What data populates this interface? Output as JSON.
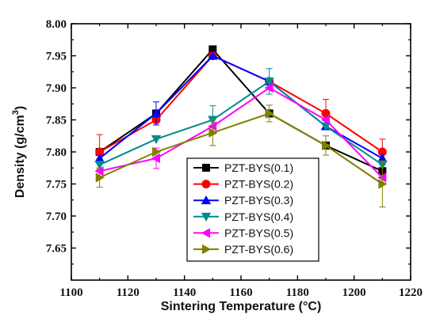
{
  "chart_data": {
    "type": "line",
    "xlabel": "Sintering Temperature (°C)",
    "ylabel_main": "Density (g/cm",
    "ylabel_sup": "3",
    "ylabel_close": ")",
    "xlim": [
      1100,
      1220
    ],
    "ylim": [
      7.6,
      8.0
    ],
    "x_ticks": [
      "1100",
      "1120",
      "1140",
      "1160",
      "1180",
      "1200",
      "1220"
    ],
    "y_ticks": [
      "7.65",
      "7.70",
      "7.75",
      "7.80",
      "7.85",
      "7.90",
      "7.95",
      "8.00"
    ],
    "legend_position": "lower-right",
    "grid": false,
    "series": [
      {
        "name": "PZT-BYS(0.1)",
        "color": "#000000",
        "marker": "square",
        "x": [
          1110,
          1130,
          1150,
          1170,
          1190,
          1210
        ],
        "y": [
          7.8,
          7.86,
          7.96,
          7.86,
          7.81,
          7.77
        ],
        "err": [
          0.0,
          0.0,
          0.0,
          0.0,
          0.0,
          0.0
        ]
      },
      {
        "name": "PZT-BYS(0.2)",
        "color": "#ff0000",
        "marker": "circle",
        "x": [
          1110,
          1130,
          1150,
          1170,
          1190,
          1210
        ],
        "y": [
          7.8,
          7.85,
          7.95,
          7.91,
          7.86,
          7.8
        ],
        "err": [
          0.027,
          0.0,
          0.0,
          0.0,
          0.022,
          0.02
        ]
      },
      {
        "name": "PZT-BYS(0.3)",
        "color": "#0000ff",
        "marker": "triangle-up",
        "x": [
          1110,
          1130,
          1150,
          1170,
          1190,
          1210
        ],
        "y": [
          7.79,
          7.86,
          7.95,
          7.91,
          7.84,
          7.79
        ],
        "err": [
          0.0,
          0.018,
          0.0,
          0.0,
          0.0,
          0.0
        ]
      },
      {
        "name": "PZT-BYS(0.4)",
        "color": "#008b8b",
        "marker": "triangle-down",
        "x": [
          1110,
          1130,
          1150,
          1170,
          1190,
          1210
        ],
        "y": [
          7.78,
          7.82,
          7.85,
          7.91,
          7.84,
          7.78
        ],
        "err": [
          0.0,
          0.0,
          0.022,
          0.02,
          0.0,
          0.0
        ]
      },
      {
        "name": "PZT-BYS(0.5)",
        "color": "#ff00ff",
        "marker": "triangle-left",
        "x": [
          1110,
          1130,
          1150,
          1170,
          1190,
          1210
        ],
        "y": [
          7.77,
          7.79,
          7.84,
          7.9,
          7.85,
          7.76
        ],
        "err": [
          0.0,
          0.016,
          0.0,
          0.0,
          0.0,
          0.0
        ]
      },
      {
        "name": "PZT-BYS(0.6)",
        "color": "#808000",
        "marker": "triangle-right",
        "x": [
          1110,
          1130,
          1150,
          1170,
          1190,
          1210
        ],
        "y": [
          7.76,
          7.8,
          7.83,
          7.86,
          7.81,
          7.75
        ],
        "err": [
          0.015,
          0.0,
          0.02,
          0.013,
          0.015,
          0.036
        ]
      }
    ]
  }
}
